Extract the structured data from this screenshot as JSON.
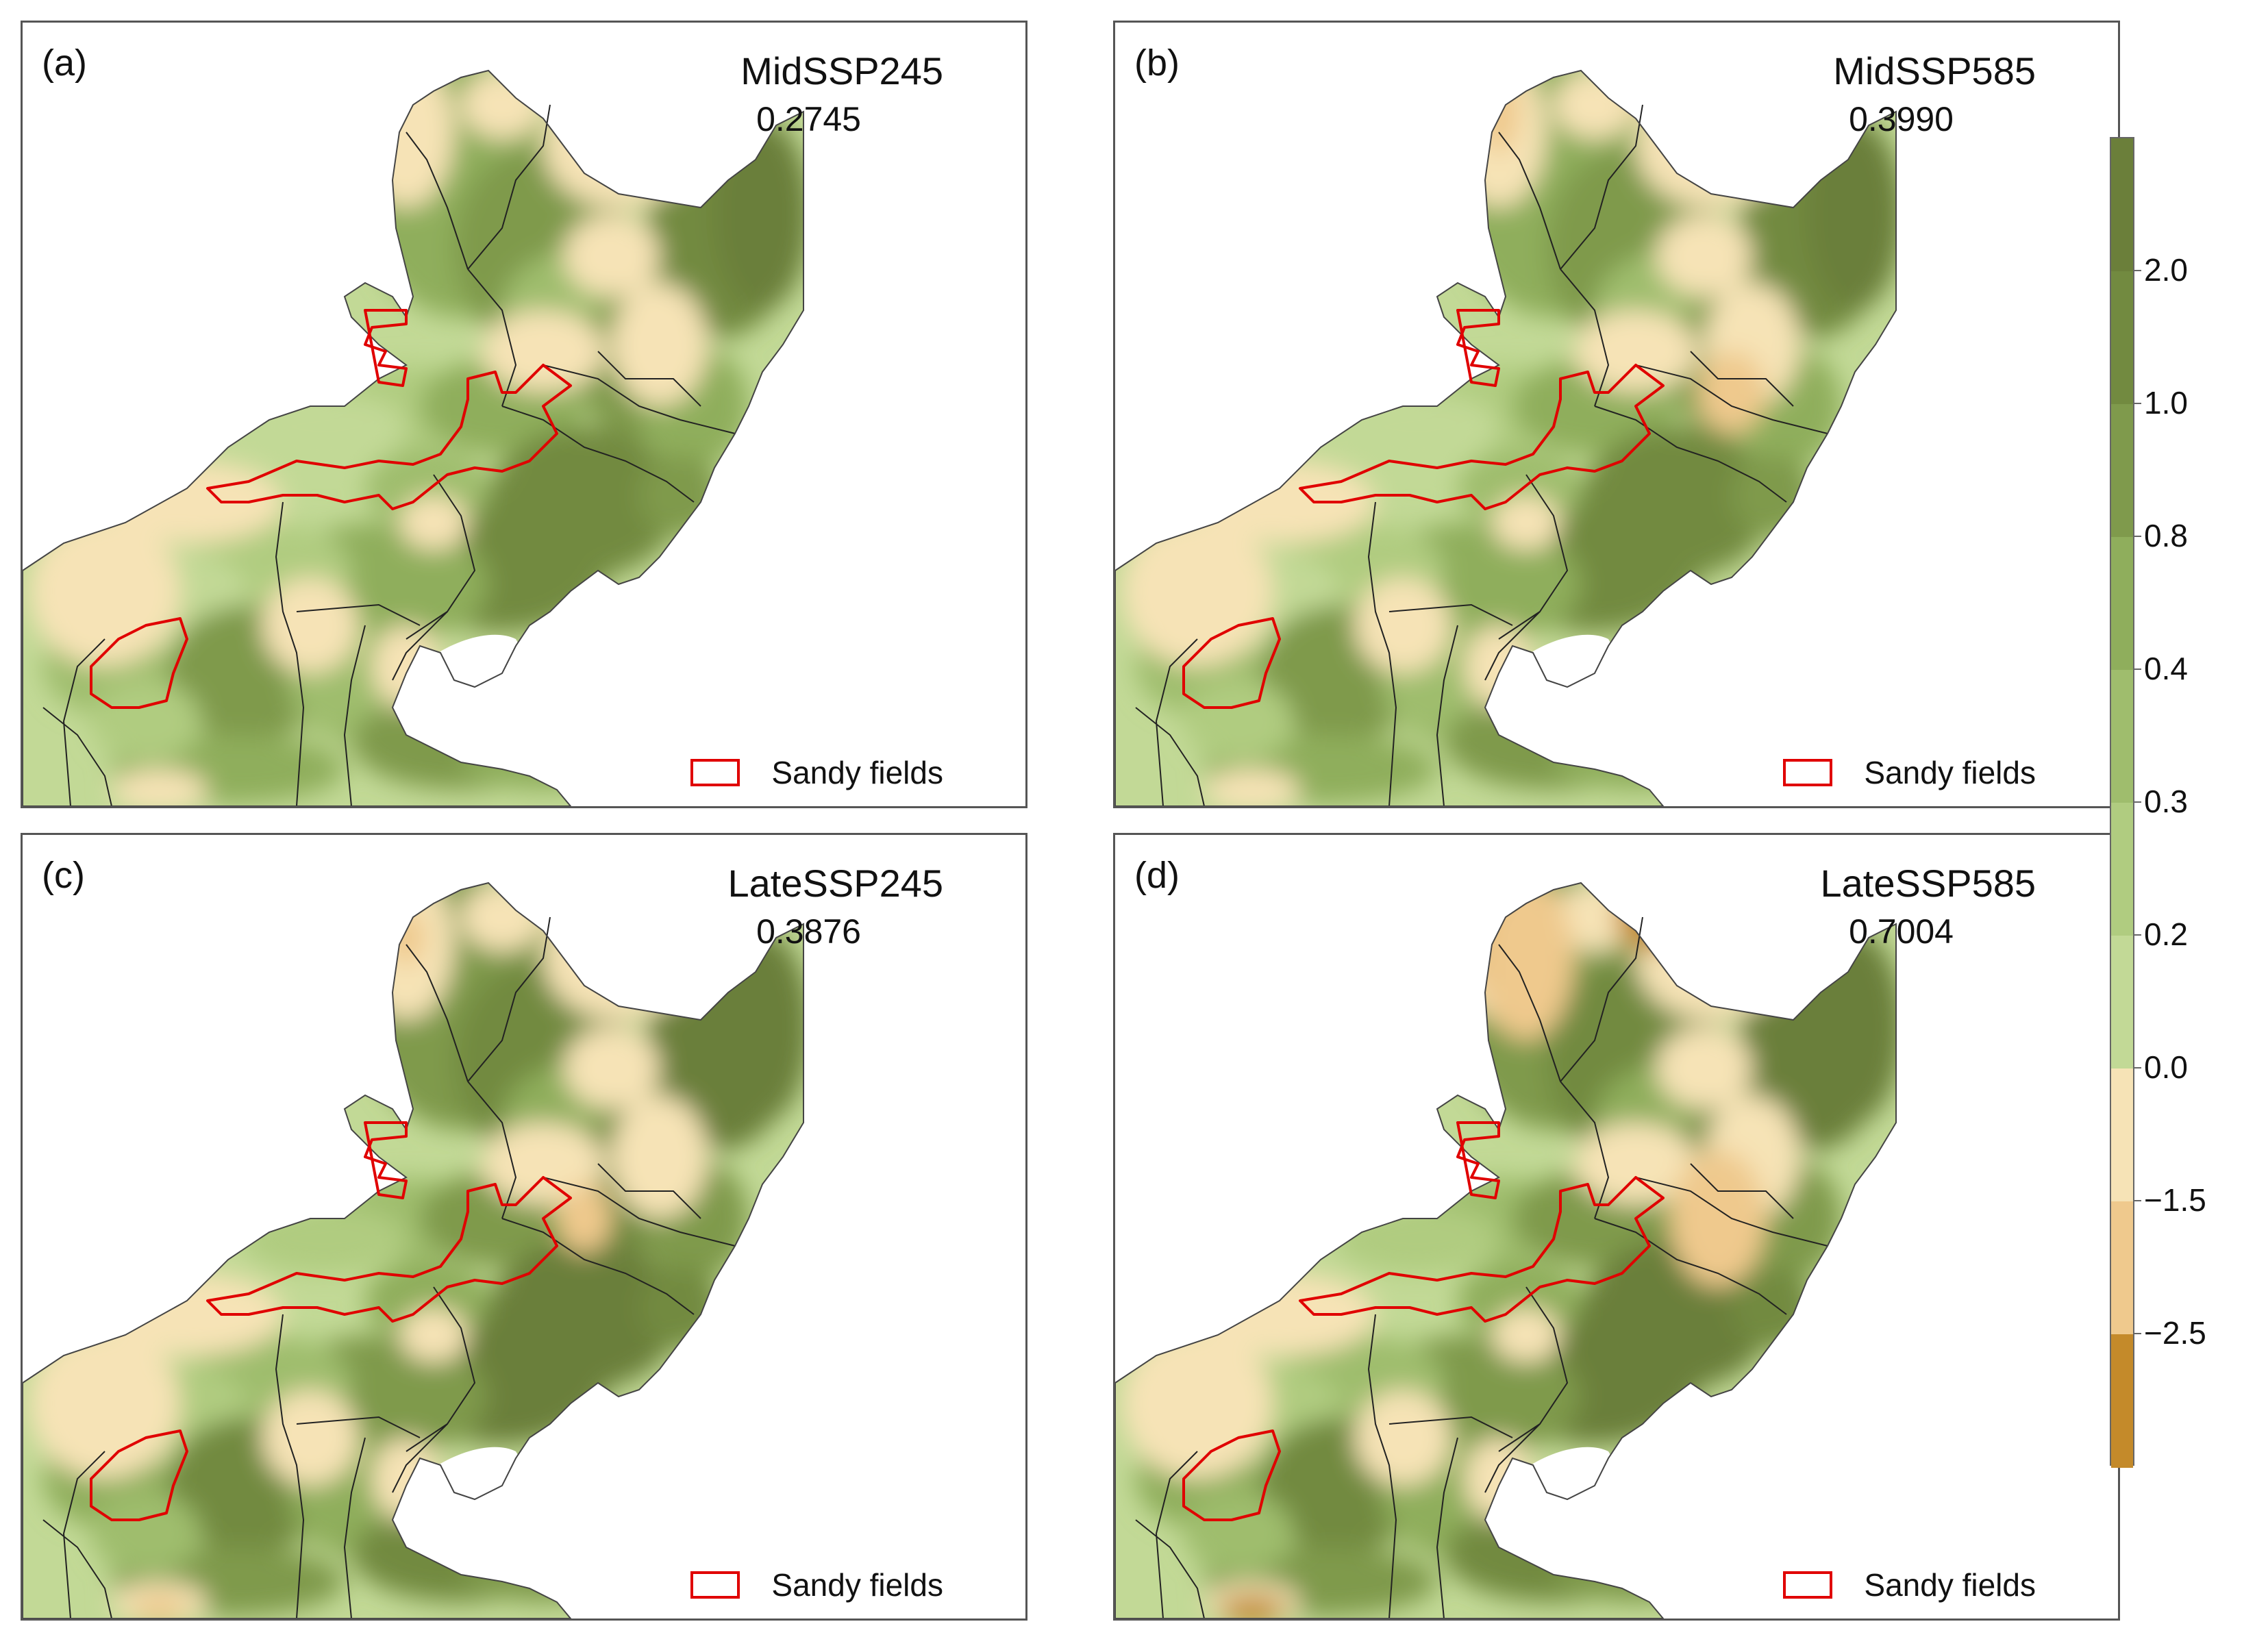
{
  "panels": [
    {
      "letter": "(a)",
      "scenario": "MidSSP245",
      "value": "0.2745",
      "legend_label": "Sandy fields",
      "variant": 0
    },
    {
      "letter": "(b)",
      "scenario": "MidSSP585",
      "value": "0.3990",
      "legend_label": "Sandy fields",
      "variant": 1
    },
    {
      "letter": "(c)",
      "scenario": "LateSSP245",
      "value": "0.3876",
      "legend_label": "Sandy fields",
      "variant": 2
    },
    {
      "letter": "(d)",
      "scenario": "LateSSP585",
      "value": "0.7004",
      "legend_label": "Sandy fields",
      "variant": 3
    }
  ],
  "colorbar": {
    "ticks": [
      "2.0",
      "1.0",
      "0.8",
      "0.4",
      "0.3",
      "0.2",
      "0.0",
      "−1.5",
      "−2.5"
    ],
    "classes": [
      {
        "from": "2.0",
        "color": "#6b7f3a"
      },
      {
        "from": "1.0",
        "color": "#728a40"
      },
      {
        "from": "0.8",
        "color": "#7f9a4c"
      },
      {
        "from": "0.4",
        "color": "#8fae5c"
      },
      {
        "from": "0.3",
        "color": "#9fbd6d"
      },
      {
        "from": "0.2",
        "color": "#b0cc80"
      },
      {
        "from": "0.0",
        "color": "#c2d996"
      },
      {
        "from": "−1.5",
        "color": "#f6e3b6"
      },
      {
        "from": "−2.5",
        "color": "#efc98d"
      },
      {
        "from": "min",
        "color": "#c48a2a"
      }
    ]
  },
  "colors": {
    "sandy_outline": "#e00000",
    "land_base": "#f6e3b6",
    "ocean": "#ffffff",
    "border_lines": "#222222"
  }
}
